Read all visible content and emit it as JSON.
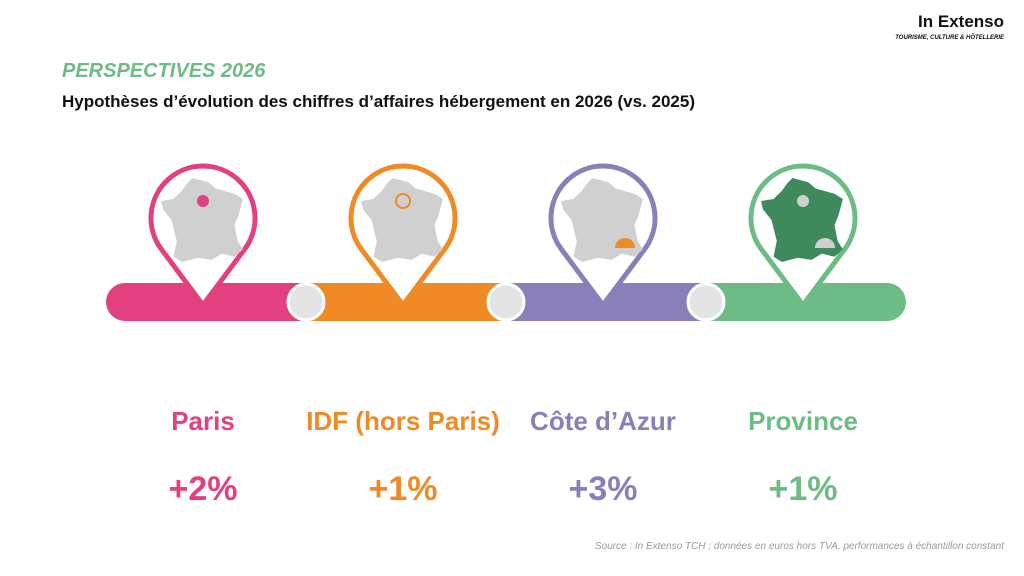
{
  "header": {
    "logo": "In Extenso",
    "logo_subtitle": "TOURISME, CULTURE & HÔTELLERIE",
    "kicker": "PERSPECTIVES 2026",
    "title": "Hypothèses d’évolution des chiffres d’affaires hébergement en 2026 (vs. 2025)"
  },
  "regions": [
    {
      "name": "Paris",
      "value": "+2%",
      "color": "#e2407f"
    },
    {
      "name": "IDF (hors Paris)",
      "value": "+1%",
      "color": "#f08a24"
    },
    {
      "name": "Côte d’Azur",
      "value": "+3%",
      "color": "#8a7fb8"
    },
    {
      "name": "Province",
      "value": "+1%",
      "color": "#6dbb85"
    }
  ],
  "footer": {
    "source": "Source : In Extenso TCH ; données en euros hors TVA, performances à échantillon constant"
  }
}
